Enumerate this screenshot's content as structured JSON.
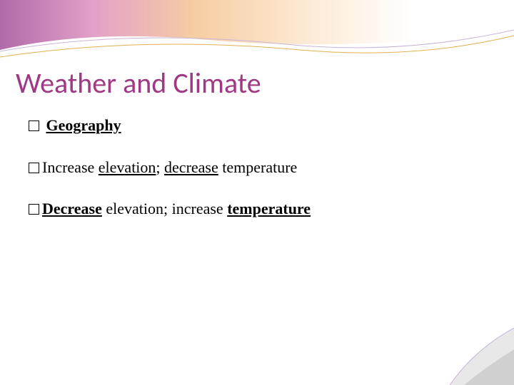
{
  "title": {
    "text": "Weather and Climate",
    "color": "#a03984",
    "fontsize": 40
  },
  "bullets": [
    {
      "runs": [
        {
          "text": " ",
          "bold": false,
          "underline": false
        },
        {
          "text": "Geography",
          "bold": true,
          "underline": true
        }
      ]
    },
    {
      "runs": [
        {
          "text": "Increase ",
          "bold": false,
          "underline": false
        },
        {
          "text": "elevation",
          "bold": false,
          "underline": true
        },
        {
          "text": "; ",
          "bold": false,
          "underline": false
        },
        {
          "text": "decrease",
          "bold": false,
          "underline": true
        },
        {
          "text": " temperature",
          "bold": false,
          "underline": false
        }
      ]
    },
    {
      "runs": [
        {
          "text": "Decrease",
          "bold": true,
          "underline": true
        },
        {
          "text": " elevation; increase ",
          "bold": false,
          "underline": false
        },
        {
          "text": "temperature",
          "bold": true,
          "underline": true
        }
      ]
    }
  ],
  "banner": {
    "gradient_stops": [
      "#b06aa8",
      "#e3a0c8",
      "#f6cda3",
      "#fce8d0",
      "#ffffff"
    ],
    "curve_stroke_top": "#c9b4d9",
    "curve_stroke_bottom": "#e0b050",
    "height": 90
  },
  "corner": {
    "fill1": "#e8e8e8",
    "fill2": "#d0d0d0",
    "stroke": "#c9b4d9"
  },
  "background_color": "#ffffff",
  "text_color": "#000000",
  "bullet_fontsize": 22
}
